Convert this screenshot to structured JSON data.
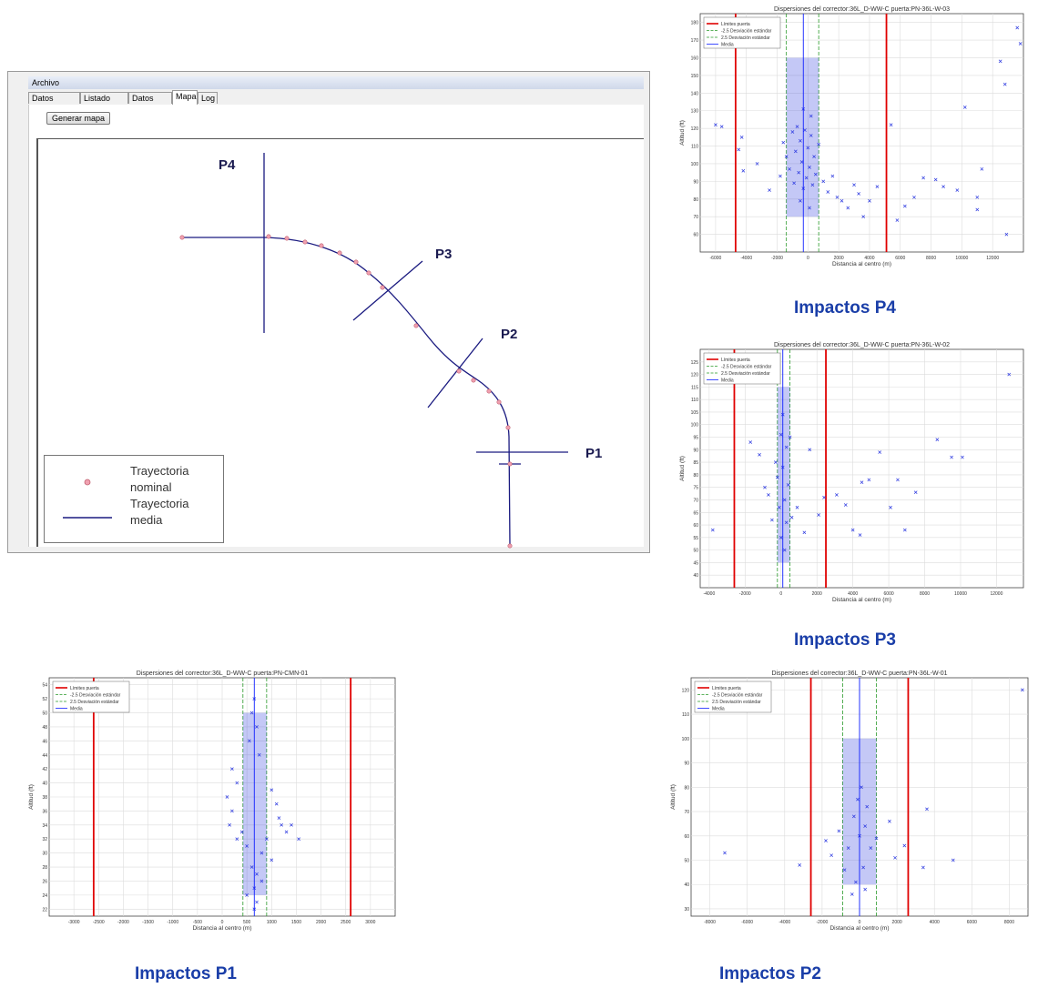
{
  "app": {
    "menu_label": "Archivo",
    "tabs": [
      {
        "label": "Datos Generales",
        "active": false
      },
      {
        "label": "Listado Puertas",
        "active": false
      },
      {
        "label": "Datos Puerta",
        "active": false
      },
      {
        "label": "Mapa",
        "active": true
      },
      {
        "label": "Log",
        "active": false
      }
    ],
    "generate_button_label": "Generar mapa"
  },
  "map": {
    "gates": [
      "P4",
      "P3",
      "P2",
      "P1"
    ],
    "legend": {
      "nominal_line1": "Trayectoria",
      "nominal_line2": "nominal",
      "mean_line1": "Trayectoria",
      "mean_line2": "media"
    },
    "colors": {
      "trajectory": "#1a1a80",
      "nominal_dot": "#f0a0b0"
    }
  },
  "captions": {
    "p4": "Impactos P4",
    "p3": "Impactos P3",
    "p2": "Impactos P2",
    "p1": "Impactos P1"
  },
  "chart_data": [
    {
      "id": "p4",
      "type": "scatter",
      "title": "Dispersiones del corrector:36L_D-WW-C puerta:PN-36L-W-03",
      "xlabel": "Distancia al centro (m)",
      "ylabel": "Altitud (ft)",
      "xlim": [
        -7000,
        14000
      ],
      "ylim": [
        50,
        185
      ],
      "xticks": [
        -6000,
        -4000,
        -2000,
        0,
        2000,
        4000,
        6000,
        8000,
        10000,
        12000
      ],
      "yticks": [
        60,
        70,
        80,
        90,
        100,
        110,
        120,
        130,
        140,
        150,
        160,
        170,
        180
      ],
      "legend": [
        "Límites puerta",
        "-2.5 Desviación estándar",
        "2.5 Desviación estándar",
        "Media"
      ],
      "lines": {
        "limits": [
          -4700,
          5100
        ],
        "sd_minus": -1400,
        "sd_plus": 700,
        "mean": -300
      },
      "points": [
        [
          -6000,
          122
        ],
        [
          -5600,
          121
        ],
        [
          -4500,
          108
        ],
        [
          -4300,
          115
        ],
        [
          -4200,
          96
        ],
        [
          -3300,
          100
        ],
        [
          -2500,
          85
        ],
        [
          -1800,
          93
        ],
        [
          -1600,
          112
        ],
        [
          -1400,
          104
        ],
        [
          -1200,
          97
        ],
        [
          -1000,
          118
        ],
        [
          -900,
          89
        ],
        [
          -800,
          107
        ],
        [
          -700,
          121
        ],
        [
          -600,
          95
        ],
        [
          -500,
          113
        ],
        [
          -400,
          101
        ],
        [
          -300,
          86
        ],
        [
          -200,
          119
        ],
        [
          -100,
          92
        ],
        [
          0,
          109
        ],
        [
          100,
          98
        ],
        [
          200,
          116
        ],
        [
          300,
          88
        ],
        [
          400,
          104
        ],
        [
          500,
          94
        ],
        [
          700,
          111
        ],
        [
          1000,
          90
        ],
        [
          1300,
          84
        ],
        [
          1600,
          93
        ],
        [
          1900,
          81
        ],
        [
          2200,
          79
        ],
        [
          2600,
          75
        ],
        [
          3000,
          88
        ],
        [
          3300,
          83
        ],
        [
          3600,
          70
        ],
        [
          4000,
          79
        ],
        [
          4500,
          87
        ],
        [
          5400,
          122
        ],
        [
          5800,
          68
        ],
        [
          6300,
          76
        ],
        [
          6900,
          81
        ],
        [
          7500,
          92
        ],
        [
          8300,
          91
        ],
        [
          8800,
          87
        ],
        [
          9700,
          85
        ],
        [
          10200,
          132
        ],
        [
          11300,
          97
        ],
        [
          12500,
          158
        ],
        [
          12800,
          145
        ],
        [
          12900,
          60
        ],
        [
          13600,
          177
        ],
        [
          13800,
          168
        ],
        [
          11000,
          81
        ],
        [
          11000,
          74
        ],
        [
          -300,
          131
        ],
        [
          200,
          127
        ],
        [
          -500,
          79
        ],
        [
          100,
          75
        ]
      ]
    },
    {
      "id": "p3",
      "type": "scatter",
      "title": "Dispersiones del corrector:36L_D-WW-C puerta:PN-36L-W-02",
      "xlabel": "Distancia al centro (m)",
      "ylabel": "Altitud (ft)",
      "xlim": [
        -4500,
        13500
      ],
      "ylim": [
        35,
        130
      ],
      "xticks": [
        -4000,
        -2000,
        0,
        2000,
        4000,
        6000,
        8000,
        10000,
        12000
      ],
      "yticks": [
        40,
        45,
        50,
        55,
        60,
        65,
        70,
        75,
        80,
        85,
        90,
        95,
        100,
        105,
        110,
        115,
        120,
        125
      ],
      "legend": [
        "Límites puerta",
        "-2.5 Desviación estándar",
        "2.5 Desviación estándar",
        "Media"
      ],
      "lines": {
        "limits": [
          -2600,
          2500
        ],
        "sd_minus": -200,
        "sd_plus": 500,
        "mean": 100
      },
      "points": [
        [
          -3800,
          58
        ],
        [
          -1700,
          93
        ],
        [
          -1200,
          88
        ],
        [
          -900,
          75
        ],
        [
          -700,
          72
        ],
        [
          -500,
          62
        ],
        [
          -300,
          85
        ],
        [
          -200,
          79
        ],
        [
          -100,
          67
        ],
        [
          0,
          96
        ],
        [
          0,
          55
        ],
        [
          100,
          83
        ],
        [
          100,
          104
        ],
        [
          200,
          70
        ],
        [
          200,
          50
        ],
        [
          300,
          91
        ],
        [
          300,
          61
        ],
        [
          400,
          76
        ],
        [
          500,
          95
        ],
        [
          600,
          63
        ],
        [
          900,
          67
        ],
        [
          1300,
          57
        ],
        [
          1600,
          90
        ],
        [
          2100,
          64
        ],
        [
          2400,
          71
        ],
        [
          3100,
          72
        ],
        [
          3600,
          68
        ],
        [
          4500,
          77
        ],
        [
          4900,
          78
        ],
        [
          5500,
          89
        ],
        [
          6500,
          78
        ],
        [
          7500,
          73
        ],
        [
          8700,
          94
        ],
        [
          9500,
          87
        ],
        [
          10100,
          87
        ],
        [
          12700,
          120
        ],
        [
          4000,
          58
        ],
        [
          4400,
          56
        ],
        [
          6100,
          67
        ],
        [
          6900,
          58
        ]
      ]
    },
    {
      "id": "p1",
      "type": "scatter",
      "title": "Dispersiones del corrector:36L_D-WW-C puerta:PN-CMN-01",
      "xlabel": "Distancia al centro (m)",
      "ylabel": "Altitud (ft)",
      "xlim": [
        -3500,
        3500
      ],
      "ylim": [
        21,
        55
      ],
      "xticks": [
        -3000,
        -2500,
        -2000,
        -1500,
        -1000,
        -500,
        0,
        500,
        1000,
        1500,
        2000,
        2500,
        3000
      ],
      "yticks": [
        22,
        24,
        26,
        28,
        30,
        32,
        34,
        36,
        38,
        40,
        42,
        44,
        46,
        48,
        50,
        52,
        54
      ],
      "legend": [
        "Límites puerta",
        "-2.5 Desviación estándar",
        "2.5 Desviación estándar",
        "Media"
      ],
      "lines": {
        "limits": [
          -2600,
          2600
        ],
        "sd_minus": 420,
        "sd_plus": 900,
        "mean": 650
      },
      "points": [
        [
          650,
          52
        ],
        [
          600,
          50
        ],
        [
          700,
          48
        ],
        [
          550,
          46
        ],
        [
          750,
          44
        ],
        [
          200,
          42
        ],
        [
          300,
          40
        ],
        [
          1000,
          39
        ],
        [
          100,
          38
        ],
        [
          1100,
          37
        ],
        [
          200,
          36
        ],
        [
          1150,
          35
        ],
        [
          150,
          34
        ],
        [
          1200,
          34
        ],
        [
          400,
          33
        ],
        [
          1300,
          33
        ],
        [
          300,
          32
        ],
        [
          900,
          32
        ],
        [
          1400,
          34
        ],
        [
          1550,
          32
        ],
        [
          500,
          31
        ],
        [
          800,
          30
        ],
        [
          1000,
          29
        ],
        [
          600,
          28
        ],
        [
          700,
          27
        ],
        [
          800,
          26
        ],
        [
          650,
          25
        ],
        [
          500,
          24
        ],
        [
          700,
          23
        ],
        [
          650,
          22
        ]
      ]
    },
    {
      "id": "p2",
      "type": "scatter",
      "title": "Dispersiones del corrector:36L_D-WW-C puerta:PN-36L-W-01",
      "xlabel": "Distancia al centro (m)",
      "ylabel": "Altitud (ft)",
      "xlim": [
        -9000,
        9000
      ],
      "ylim": [
        27,
        125
      ],
      "xticks": [
        -8000,
        -6000,
        -4000,
        -2000,
        0,
        2000,
        4000,
        6000,
        8000
      ],
      "yticks": [
        30,
        40,
        50,
        60,
        70,
        80,
        90,
        100,
        110,
        120
      ],
      "legend": [
        "Límites puerta",
        "-2.5 Desviación estándar",
        "2.5 Desviación estándar",
        "Media"
      ],
      "lines": {
        "limits": [
          -2600,
          2600
        ],
        "sd_minus": -900,
        "sd_plus": 900,
        "mean": 0
      },
      "points": [
        [
          -7200,
          53
        ],
        [
          -3200,
          48
        ],
        [
          -1800,
          58
        ],
        [
          -1500,
          52
        ],
        [
          -1100,
          62
        ],
        [
          -800,
          46
        ],
        [
          -600,
          55
        ],
        [
          -300,
          68
        ],
        [
          -200,
          41
        ],
        [
          0,
          60
        ],
        [
          100,
          80
        ],
        [
          200,
          47
        ],
        [
          300,
          64
        ],
        [
          400,
          72
        ],
        [
          600,
          55
        ],
        [
          900,
          59
        ],
        [
          1600,
          66
        ],
        [
          1900,
          51
        ],
        [
          2400,
          56
        ],
        [
          3400,
          47
        ],
        [
          3600,
          71
        ],
        [
          5000,
          50
        ],
        [
          8700,
          120
        ],
        [
          -400,
          36
        ],
        [
          300,
          38
        ],
        [
          -100,
          75
        ]
      ]
    }
  ]
}
